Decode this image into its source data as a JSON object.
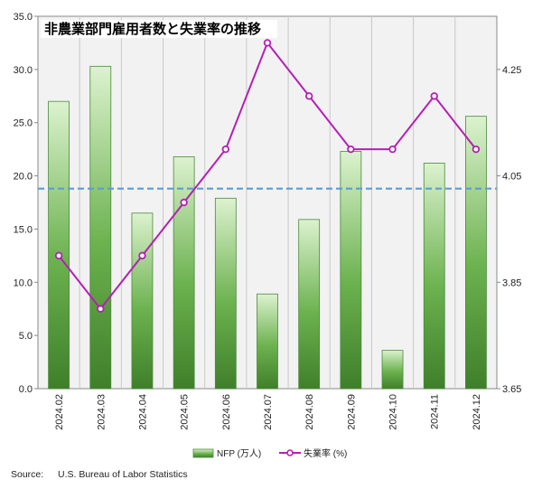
{
  "chart_data": {
    "type": "bar",
    "title": "非農業部門雇用者数と失業率の推移",
    "categories": [
      "2024.02",
      "2024.03",
      "2024.04",
      "2024.05",
      "2024.06",
      "2024.07",
      "2024.08",
      "2024.09",
      "2024.10",
      "2024.11",
      "2024.12"
    ],
    "series": [
      {
        "name": "NFP (万人)",
        "type": "bar",
        "axis": "left",
        "color": "#5aa84a",
        "values": [
          27.0,
          30.3,
          16.5,
          21.8,
          17.9,
          8.9,
          15.9,
          22.3,
          3.6,
          21.2,
          25.6
        ]
      },
      {
        "name": "失業率 (%)",
        "type": "line",
        "axis": "right",
        "color": "#b51fb5",
        "values": [
          3.9,
          3.8,
          3.9,
          4.0,
          4.1,
          4.3,
          4.2,
          4.1,
          4.1,
          4.2,
          4.1
        ]
      }
    ],
    "reference_line": {
      "axis": "left",
      "value": 18.8,
      "color": "#5b9bd5",
      "style": "dashed"
    },
    "yaxis_left": {
      "ylim": [
        0,
        35
      ],
      "ticks": [
        "0.0",
        "5.0",
        "10.0",
        "15.0",
        "20.0",
        "25.0",
        "30.0",
        "35.0"
      ]
    },
    "yaxis_right": {
      "ylim": [
        3.65,
        4.35
      ],
      "ticks": [
        "3.65",
        "3.85",
        "4.05",
        "4.25"
      ]
    },
    "grid": "vertical",
    "legend_placement": "bottom-center",
    "legend": [
      "NFP (万人)",
      "失業率 (%)"
    ]
  },
  "source": {
    "label": "Source:",
    "text": "U.S. Bureau of Labor Statistics"
  }
}
